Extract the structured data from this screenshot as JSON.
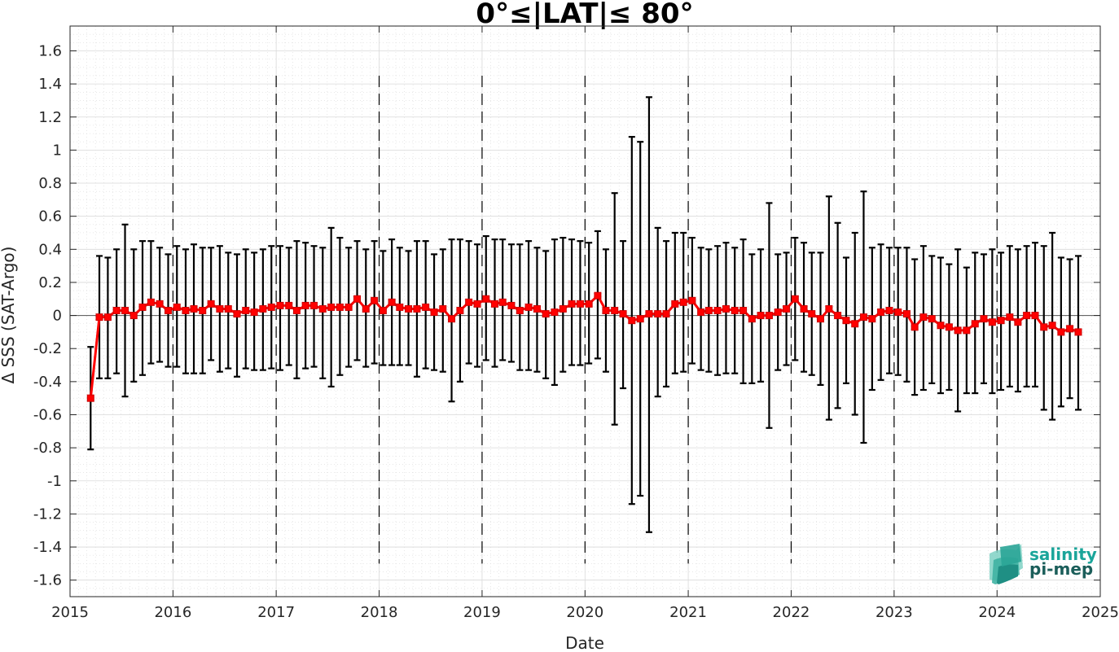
{
  "chart_data": {
    "type": "line",
    "title": "0°≤|LAT|≤ 80°",
    "xlabel": "Date",
    "ylabel": "Δ SSS (SAT-Argo)",
    "xlim": [
      "2015-01-01",
      "2025-01-01"
    ],
    "ylim": [
      -1.7,
      1.75
    ],
    "x_ticks": [
      "2015",
      "2016",
      "2017",
      "2018",
      "2019",
      "2020",
      "2021",
      "2022",
      "2023",
      "2024",
      "2025"
    ],
    "y_ticks": [
      1.6,
      1.4,
      1.2,
      1,
      0.8,
      0.6,
      0.4,
      0.2,
      0,
      -0.2,
      -0.4,
      -0.6,
      -0.8,
      -1,
      -1.2,
      -1.4,
      -1.6
    ],
    "y_tick_labels": [
      "1.6",
      "1.4",
      "1.2",
      "1",
      "0.8",
      "0.6",
      "0.4",
      "0.2",
      "0",
      "-0.2",
      "-0.4",
      "-0.6",
      "-0.8",
      "-1",
      "-1.2",
      "-1.4",
      "-1.6"
    ],
    "grid": true,
    "year_boundary_lines": [
      "2016-01-01",
      "2017-01-01",
      "2018-01-01",
      "2019-01-01",
      "2020-01-01",
      "2021-01-01",
      "2022-01-01",
      "2023-01-01",
      "2024-01-01"
    ],
    "series": [
      {
        "x": [
          "2015-03",
          "2015-04",
          "2015-05",
          "2015-06",
          "2015-07",
          "2015-08",
          "2015-09",
          "2015-10",
          "2015-11",
          "2015-12",
          "2016-01",
          "2016-02",
          "2016-03",
          "2016-04",
          "2016-05",
          "2016-06",
          "2016-07",
          "2016-08",
          "2016-09",
          "2016-10",
          "2016-11",
          "2016-12",
          "2017-01",
          "2017-02",
          "2017-03",
          "2017-04",
          "2017-05",
          "2017-06",
          "2017-07",
          "2017-08",
          "2017-09",
          "2017-10",
          "2017-11",
          "2017-12",
          "2018-01",
          "2018-02",
          "2018-03",
          "2018-04",
          "2018-05",
          "2018-06",
          "2018-07",
          "2018-08",
          "2018-09",
          "2018-10",
          "2018-11",
          "2018-12",
          "2019-01",
          "2019-02",
          "2019-03",
          "2019-04",
          "2019-05",
          "2019-06",
          "2019-07",
          "2019-08",
          "2019-09",
          "2019-10",
          "2019-11",
          "2019-12",
          "2020-01",
          "2020-02",
          "2020-03",
          "2020-04",
          "2020-05",
          "2020-06",
          "2020-07",
          "2020-08",
          "2020-09",
          "2020-10",
          "2020-11",
          "2020-12",
          "2021-01",
          "2021-02",
          "2021-03",
          "2021-04",
          "2021-05",
          "2021-06",
          "2021-07",
          "2021-08",
          "2021-09",
          "2021-10",
          "2021-11",
          "2021-12",
          "2022-01",
          "2022-02",
          "2022-03",
          "2022-04",
          "2022-05",
          "2022-06",
          "2022-07",
          "2022-08",
          "2022-09",
          "2022-10",
          "2022-11",
          "2022-12",
          "2023-01",
          "2023-02",
          "2023-03",
          "2023-04",
          "2023-05",
          "2023-06",
          "2023-07",
          "2023-08",
          "2023-09",
          "2023-10",
          "2023-11",
          "2023-12",
          "2024-01",
          "2024-02",
          "2024-03",
          "2024-04",
          "2024-05",
          "2024-06",
          "2024-07",
          "2024-08",
          "2024-09",
          "2024-10"
        ],
        "values": [
          -0.5,
          -0.01,
          -0.01,
          0.03,
          0.03,
          0.0,
          0.05,
          0.08,
          0.07,
          0.03,
          0.05,
          0.03,
          0.04,
          0.03,
          0.07,
          0.04,
          0.04,
          0.01,
          0.03,
          0.02,
          0.04,
          0.05,
          0.06,
          0.06,
          0.03,
          0.06,
          0.06,
          0.04,
          0.05,
          0.05,
          0.05,
          0.1,
          0.04,
          0.09,
          0.03,
          0.08,
          0.05,
          0.04,
          0.04,
          0.05,
          0.02,
          0.04,
          -0.02,
          0.03,
          0.08,
          0.07,
          0.1,
          0.07,
          0.08,
          0.06,
          0.03,
          0.05,
          0.04,
          0.01,
          0.02,
          0.04,
          0.07,
          0.07,
          0.07,
          0.12,
          0.03,
          0.03,
          0.01,
          -0.03,
          -0.02,
          0.01,
          0.01,
          0.01,
          0.07,
          0.08,
          0.09,
          0.02,
          0.03,
          0.03,
          0.04,
          0.03,
          0.03,
          -0.02,
          0.0,
          0.0,
          0.02,
          0.04,
          0.1,
          0.04,
          0.01,
          -0.02,
          0.04,
          0.0,
          -0.03,
          -0.05,
          -0.01,
          -0.02,
          0.02,
          0.03,
          0.02,
          0.01,
          -0.07,
          -0.01,
          -0.02,
          -0.06,
          -0.07,
          -0.09,
          -0.09,
          -0.05,
          -0.02,
          -0.04,
          -0.03,
          -0.01,
          -0.04,
          0.0,
          0.0,
          -0.07,
          -0.06,
          -0.1,
          -0.08,
          -0.1
        ],
        "upper": [
          -0.19,
          0.36,
          0.35,
          0.4,
          0.55,
          0.4,
          0.45,
          0.45,
          0.41,
          0.37,
          0.42,
          0.4,
          0.43,
          0.41,
          0.41,
          0.42,
          0.38,
          0.37,
          0.4,
          0.38,
          0.4,
          0.42,
          0.42,
          0.41,
          0.45,
          0.44,
          0.42,
          0.41,
          0.53,
          0.47,
          0.41,
          0.45,
          0.4,
          0.45,
          0.39,
          0.46,
          0.41,
          0.39,
          0.45,
          0.45,
          0.37,
          0.4,
          0.46,
          0.46,
          0.45,
          0.43,
          0.48,
          0.46,
          0.46,
          0.43,
          0.43,
          0.45,
          0.41,
          0.39,
          0.46,
          0.47,
          0.46,
          0.45,
          0.44,
          0.51,
          0.4,
          0.74,
          0.45,
          1.08,
          1.05,
          1.32,
          0.53,
          0.45,
          0.5,
          0.5,
          0.47,
          0.41,
          0.4,
          0.42,
          0.44,
          0.41,
          0.46,
          0.37,
          0.4,
          0.68,
          0.37,
          0.38,
          0.47,
          0.44,
          0.38,
          0.38,
          0.72,
          0.56,
          0.35,
          0.5,
          0.75,
          0.41,
          0.43,
          0.41,
          0.41,
          0.41,
          0.34,
          0.42,
          0.36,
          0.35,
          0.31,
          0.4,
          0.29,
          0.38,
          0.37,
          0.4,
          0.38,
          0.42,
          0.4,
          0.42,
          0.44,
          0.42,
          0.5,
          0.35,
          0.34,
          0.36
        ],
        "lower": [
          -0.81,
          -0.38,
          -0.38,
          -0.35,
          -0.49,
          -0.4,
          -0.36,
          -0.29,
          -0.28,
          -0.31,
          -0.31,
          -0.35,
          -0.35,
          -0.35,
          -0.27,
          -0.34,
          -0.32,
          -0.37,
          -0.32,
          -0.33,
          -0.33,
          -0.32,
          -0.33,
          -0.3,
          -0.38,
          -0.32,
          -0.31,
          -0.38,
          -0.43,
          -0.36,
          -0.31,
          -0.27,
          -0.31,
          -0.29,
          -0.3,
          -0.3,
          -0.3,
          -0.3,
          -0.37,
          -0.32,
          -0.33,
          -0.34,
          -0.52,
          -0.4,
          -0.29,
          -0.31,
          -0.27,
          -0.31,
          -0.27,
          -0.28,
          -0.33,
          -0.33,
          -0.34,
          -0.38,
          -0.42,
          -0.34,
          -0.3,
          -0.3,
          -0.29,
          -0.26,
          -0.34,
          -0.66,
          -0.44,
          -1.14,
          -1.09,
          -1.31,
          -0.49,
          -0.43,
          -0.35,
          -0.34,
          -0.29,
          -0.33,
          -0.34,
          -0.36,
          -0.35,
          -0.35,
          -0.41,
          -0.41,
          -0.4,
          -0.68,
          -0.33,
          -0.3,
          -0.27,
          -0.34,
          -0.36,
          -0.42,
          -0.63,
          -0.56,
          -0.41,
          -0.6,
          -0.77,
          -0.45,
          -0.39,
          -0.35,
          -0.36,
          -0.4,
          -0.48,
          -0.45,
          -0.41,
          -0.47,
          -0.45,
          -0.58,
          -0.47,
          -0.47,
          -0.41,
          -0.47,
          -0.45,
          -0.43,
          -0.46,
          -0.43,
          -0.43,
          -0.57,
          -0.63,
          -0.55,
          -0.5,
          -0.57
        ]
      }
    ]
  },
  "colors": {
    "series_line": "#ff0000",
    "marker_fill": "#ff0000",
    "marker_edge": "#cc0000",
    "error_bars": "#000000",
    "grid": "#d9d9d9",
    "axes": "#262626",
    "logo_teal": "#1aa59a",
    "logo_dark": "#1b5e5a"
  },
  "logo": {
    "line1": "salinity",
    "line2": "pi-mep"
  }
}
